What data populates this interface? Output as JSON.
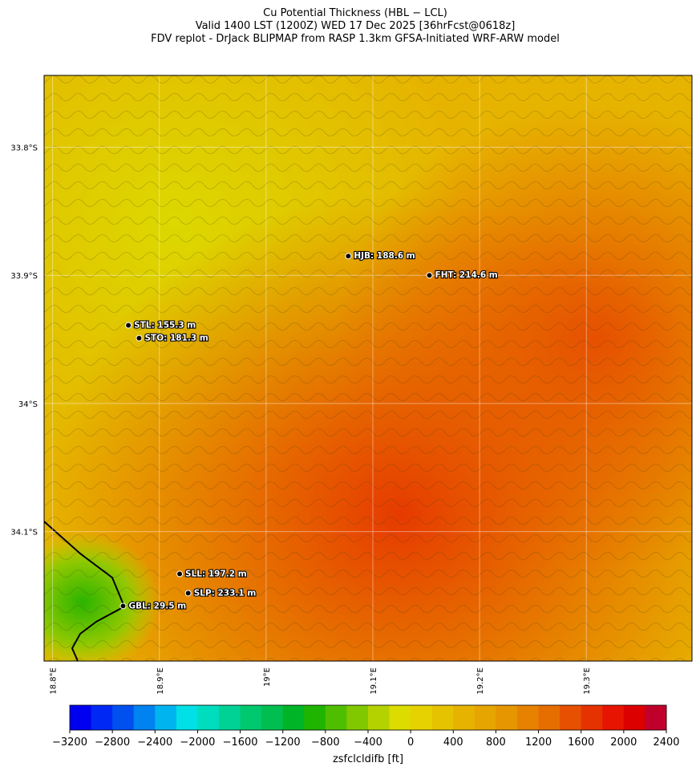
{
  "header": {
    "title": "Cu Potential Thickness (HBL − LCL)",
    "subtitle": "Valid 1400 LST (1200Z) WED 17 Dec 2025 [36hrFcst@0618z]",
    "source": "FDV replot - DrJack BLIPMAP from RASP 1.3km GFSA-Initiated WRF-ARW model"
  },
  "map": {
    "lon_lim": [
      18.792,
      19.399
    ],
    "lat_lim": [
      -33.744,
      -34.201
    ],
    "lat_ticks": [
      {
        "value": -33.8,
        "label": "33.8°S"
      },
      {
        "value": -33.9,
        "label": "33.9°S"
      },
      {
        "value": -34.0,
        "label": "34°S"
      },
      {
        "value": -34.1,
        "label": "34.1°S"
      }
    ],
    "lon_ticks": [
      {
        "value": 18.8,
        "label": "18.8°E"
      },
      {
        "value": 18.9,
        "label": "18.9°E"
      },
      {
        "value": 19.0,
        "label": "19°E"
      },
      {
        "value": 19.1,
        "label": "19.1°E"
      },
      {
        "value": 19.2,
        "label": "19.2°E"
      },
      {
        "value": 19.3,
        "label": "19.3°E"
      }
    ],
    "stations": [
      {
        "label": "HJB: 188.6 m",
        "lon": 19.077,
        "lat": -33.885
      },
      {
        "label": "FHT: 214.6 m",
        "lon": 19.153,
        "lat": -33.9
      },
      {
        "label": "STL: 155.3 m",
        "lon": 18.871,
        "lat": -33.939
      },
      {
        "label": "STO: 181.3 m",
        "lon": 18.881,
        "lat": -33.949
      },
      {
        "label": "SLL: 197.2 m",
        "lon": 18.919,
        "lat": -34.133
      },
      {
        "label": "SLP: 233.1 m",
        "lon": 18.927,
        "lat": -34.148
      },
      {
        "label": "GBL: 29.5 m",
        "lon": 18.866,
        "lat": -34.158
      }
    ]
  },
  "colorbar": {
    "label": "zsfclcldifb [ft]",
    "lim": [
      -3200,
      2400
    ],
    "colors": [
      "#0000f0",
      "#0028f5",
      "#0050f0",
      "#0082f0",
      "#00b4f0",
      "#00e0e6",
      "#00dcbe",
      "#00d296",
      "#00c86e",
      "#00be50",
      "#00b428",
      "#1eb400",
      "#50be00",
      "#82c800",
      "#b4d200",
      "#dcdc00",
      "#e6d200",
      "#e6c300",
      "#e6b400",
      "#e6a500",
      "#e69600",
      "#e68200",
      "#e66e00",
      "#e65000",
      "#e63200",
      "#e61400",
      "#dc0000",
      "#c0002a"
    ],
    "ticks": [
      {
        "value": -3200,
        "label": "−3200"
      },
      {
        "value": -2800,
        "label": "−2800"
      },
      {
        "value": -2400,
        "label": "−2400"
      },
      {
        "value": -2000,
        "label": "−2000"
      },
      {
        "value": -1600,
        "label": "−1600"
      },
      {
        "value": -1200,
        "label": "−1200"
      },
      {
        "value": -800,
        "label": "−800"
      },
      {
        "value": -400,
        "label": "−400"
      },
      0,
      400,
      800,
      1200,
      1600,
      2000,
      2400
    ]
  }
}
